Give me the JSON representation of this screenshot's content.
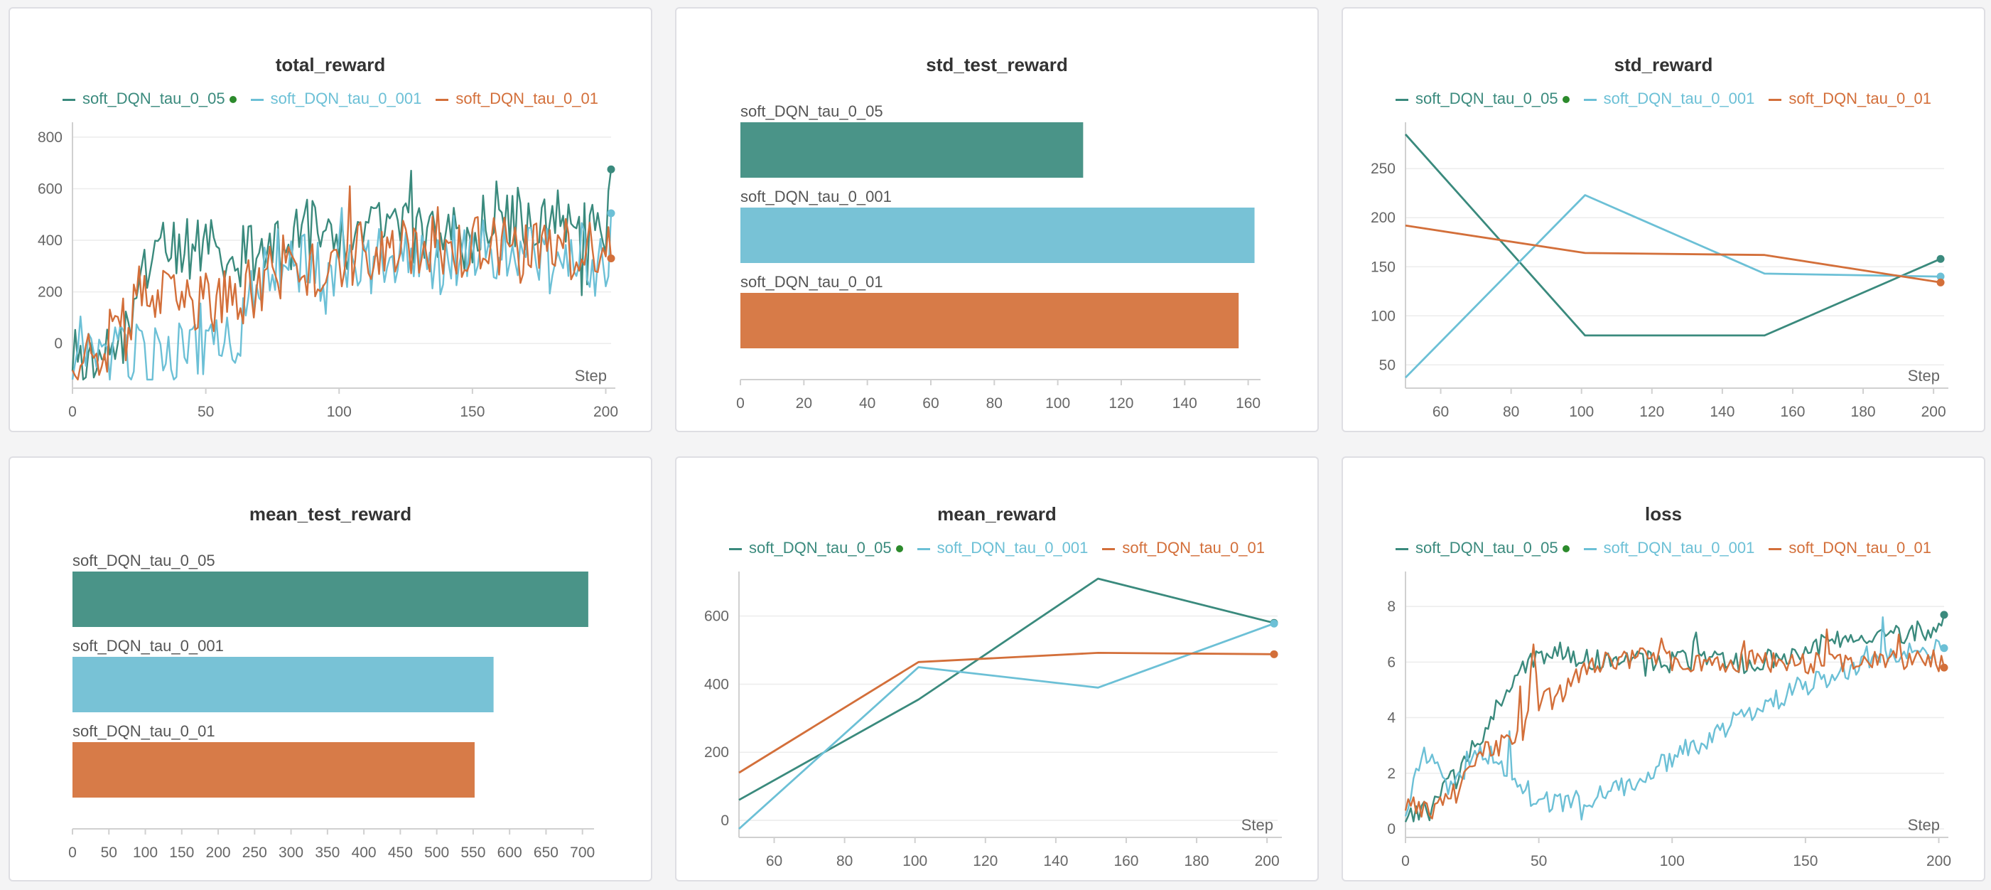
{
  "colors": {
    "soft_DQN_tau_0_05": "#3a8a7d",
    "soft_DQN_tau_0_001": "#6cc0d6",
    "soft_DQN_tau_0_01": "#d36f3a",
    "highlight_dot": "#2c8a2c",
    "grid": "#ececec",
    "axis": "#d0d0d0"
  },
  "legend_items": [
    {
      "name": "soft_DQN_tau_0_05",
      "color": "#3a8a7d",
      "dot": true
    },
    {
      "name": "soft_DQN_tau_0_001",
      "color": "#6cc0d6",
      "dot": false
    },
    {
      "name": "soft_DQN_tau_0_01",
      "color": "#d36f3a",
      "dot": false
    }
  ],
  "chart_data": [
    {
      "id": "total_reward",
      "type": "line",
      "title": "total_reward",
      "xlabel": "Step",
      "xlim": [
        0,
        202
      ],
      "ylim": [
        -140,
        830
      ],
      "xticks": [
        0,
        50,
        100,
        150,
        200
      ],
      "yticks": [
        0,
        200,
        400,
        600,
        800
      ],
      "noisy": true,
      "series": [
        {
          "name": "soft_DQN_tau_0_05",
          "color": "#3a8a7d",
          "x": [
            0,
            10,
            20,
            25,
            30,
            40,
            50,
            60,
            70,
            80,
            90,
            100,
            110,
            120,
            130,
            140,
            150,
            160,
            170,
            180,
            190,
            200,
            202
          ],
          "y": [
            -40,
            -50,
            60,
            180,
            420,
            350,
            380,
            320,
            380,
            360,
            450,
            380,
            440,
            520,
            400,
            430,
            380,
            560,
            450,
            480,
            420,
            480,
            675
          ]
        },
        {
          "name": "soft_DQN_tau_0_001",
          "color": "#6cc0d6",
          "x": [
            0,
            10,
            20,
            30,
            40,
            50,
            60,
            70,
            80,
            90,
            100,
            110,
            120,
            130,
            140,
            150,
            160,
            170,
            180,
            190,
            200,
            202
          ],
          "y": [
            -80,
            -60,
            -40,
            -60,
            -30,
            -20,
            -20,
            250,
            350,
            280,
            300,
            280,
            350,
            320,
            300,
            380,
            350,
            400,
            300,
            350,
            280,
            505
          ]
        },
        {
          "name": "soft_DQN_tau_0_01",
          "color": "#d36f3a",
          "x": [
            0,
            10,
            20,
            25,
            30,
            40,
            50,
            60,
            70,
            80,
            90,
            100,
            110,
            120,
            130,
            140,
            150,
            160,
            170,
            180,
            190,
            200,
            202
          ],
          "y": [
            -40,
            -20,
            60,
            180,
            180,
            150,
            170,
            150,
            240,
            300,
            270,
            330,
            360,
            340,
            380,
            360,
            380,
            360,
            380,
            360,
            330,
            380,
            330
          ]
        }
      ]
    },
    {
      "id": "std_test_reward",
      "type": "bar",
      "orientation": "horizontal",
      "title": "std_test_reward",
      "xlim": [
        0,
        163
      ],
      "xticks": [
        0,
        20,
        40,
        60,
        80,
        100,
        120,
        140,
        160
      ],
      "categories": [
        "soft_DQN_tau_0_05",
        "soft_DQN_tau_0_001",
        "soft_DQN_tau_0_01"
      ],
      "values": [
        108,
        162,
        157
      ],
      "bar_colors": [
        "#4a9488",
        "#78c2d6",
        "#d77b48"
      ]
    },
    {
      "id": "std_reward",
      "type": "line",
      "title": "std_reward",
      "xlabel": "Step",
      "xlim": [
        50,
        203
      ],
      "ylim": [
        35,
        290
      ],
      "xticks": [
        60,
        80,
        100,
        120,
        140,
        160,
        180,
        200
      ],
      "yticks": [
        50,
        100,
        150,
        200,
        250
      ],
      "noisy": false,
      "series": [
        {
          "name": "soft_DQN_tau_0_05",
          "color": "#3a8a7d",
          "x": [
            50,
            101,
            152,
            202
          ],
          "y": [
            285,
            80,
            80,
            158
          ]
        },
        {
          "name": "soft_DQN_tau_0_001",
          "color": "#6cc0d6",
          "x": [
            50,
            101,
            152,
            202
          ],
          "y": [
            37,
            223,
            143,
            140
          ]
        },
        {
          "name": "soft_DQN_tau_0_01",
          "color": "#d36f3a",
          "x": [
            50,
            101,
            152,
            202
          ],
          "y": [
            192,
            164,
            162,
            134
          ]
        }
      ]
    },
    {
      "id": "mean_test_reward",
      "type": "bar",
      "orientation": "horizontal",
      "title": "mean_test_reward",
      "xlim": [
        0,
        712
      ],
      "xticks": [
        0,
        50,
        100,
        150,
        200,
        250,
        300,
        350,
        400,
        450,
        500,
        550,
        600,
        650,
        700
      ],
      "categories": [
        "soft_DQN_tau_0_05",
        "soft_DQN_tau_0_001",
        "soft_DQN_tau_0_01"
      ],
      "values": [
        708,
        578,
        552
      ],
      "bar_colors": [
        "#4a9488",
        "#78c2d6",
        "#d77b48"
      ]
    },
    {
      "id": "mean_reward",
      "type": "line",
      "title": "mean_reward",
      "xlabel": "Step",
      "xlim": [
        50,
        203
      ],
      "ylim": [
        -25,
        710
      ],
      "xticks": [
        60,
        80,
        100,
        120,
        140,
        160,
        180,
        200
      ],
      "yticks": [
        0,
        200,
        400,
        600
      ],
      "noisy": false,
      "series": [
        {
          "name": "soft_DQN_tau_0_05",
          "color": "#3a8a7d",
          "x": [
            50,
            101,
            152,
            202
          ],
          "y": [
            60,
            355,
            710,
            580
          ]
        },
        {
          "name": "soft_DQN_tau_0_001",
          "color": "#6cc0d6",
          "x": [
            50,
            101,
            152,
            202
          ],
          "y": [
            -25,
            450,
            390,
            578
          ]
        },
        {
          "name": "soft_DQN_tau_0_01",
          "color": "#d36f3a",
          "x": [
            50,
            101,
            152,
            202
          ],
          "y": [
            140,
            465,
            492,
            488
          ]
        }
      ]
    },
    {
      "id": "loss",
      "type": "line",
      "title": "loss",
      "xlabel": "Step",
      "xlim": [
        0,
        202
      ],
      "ylim": [
        0,
        9
      ],
      "xticks": [
        0,
        50,
        100,
        150,
        200
      ],
      "yticks": [
        0,
        2,
        4,
        6,
        8
      ],
      "noisy": true,
      "series": [
        {
          "name": "soft_DQN_tau_0_05",
          "color": "#3a8a7d",
          "x": [
            0,
            5,
            10,
            15,
            20,
            25,
            30,
            35,
            40,
            45,
            50,
            60,
            70,
            80,
            90,
            100,
            110,
            120,
            130,
            140,
            150,
            160,
            170,
            180,
            190,
            200,
            202
          ],
          "y": [
            0.3,
            0.5,
            0.7,
            1.5,
            2.2,
            2.8,
            3.5,
            4.5,
            5.0,
            5.8,
            6.3,
            6.3,
            6.1,
            6.0,
            6.1,
            6.0,
            6.1,
            6.0,
            5.9,
            6.2,
            6.3,
            6.8,
            6.7,
            6.9,
            7.0,
            7.2,
            7.7
          ]
        },
        {
          "name": "soft_DQN_tau_0_001",
          "color": "#6cc0d6",
          "x": [
            0,
            5,
            10,
            15,
            20,
            25,
            30,
            35,
            40,
            45,
            50,
            60,
            70,
            80,
            90,
            100,
            110,
            120,
            130,
            140,
            150,
            160,
            170,
            180,
            190,
            200,
            202
          ],
          "y": [
            0.5,
            2.5,
            2.8,
            1.5,
            1.8,
            2.5,
            2.8,
            2.5,
            1.8,
            1.2,
            1.0,
            0.9,
            1.1,
            1.4,
            2.0,
            2.6,
            3.1,
            3.6,
            4.2,
            4.7,
            5.2,
            5.5,
            5.8,
            6.1,
            6.3,
            6.6,
            6.5
          ]
        },
        {
          "name": "soft_DQN_tau_0_01",
          "color": "#d36f3a",
          "x": [
            0,
            5,
            10,
            15,
            20,
            25,
            30,
            35,
            40,
            45,
            48,
            50,
            55,
            60,
            65,
            70,
            80,
            90,
            100,
            110,
            120,
            130,
            140,
            150,
            160,
            170,
            180,
            190,
            200,
            202
          ],
          "y": [
            0.7,
            0.8,
            0.7,
            1.0,
            1.5,
            2.5,
            3.0,
            3.0,
            3.2,
            3.5,
            6.5,
            4.5,
            4.7,
            5.0,
            5.5,
            6.0,
            6.0,
            6.2,
            6.1,
            6.0,
            6.0,
            6.1,
            6.0,
            5.9,
            6.0,
            6.0,
            6.0,
            6.1,
            6.0,
            5.8
          ]
        }
      ]
    }
  ]
}
